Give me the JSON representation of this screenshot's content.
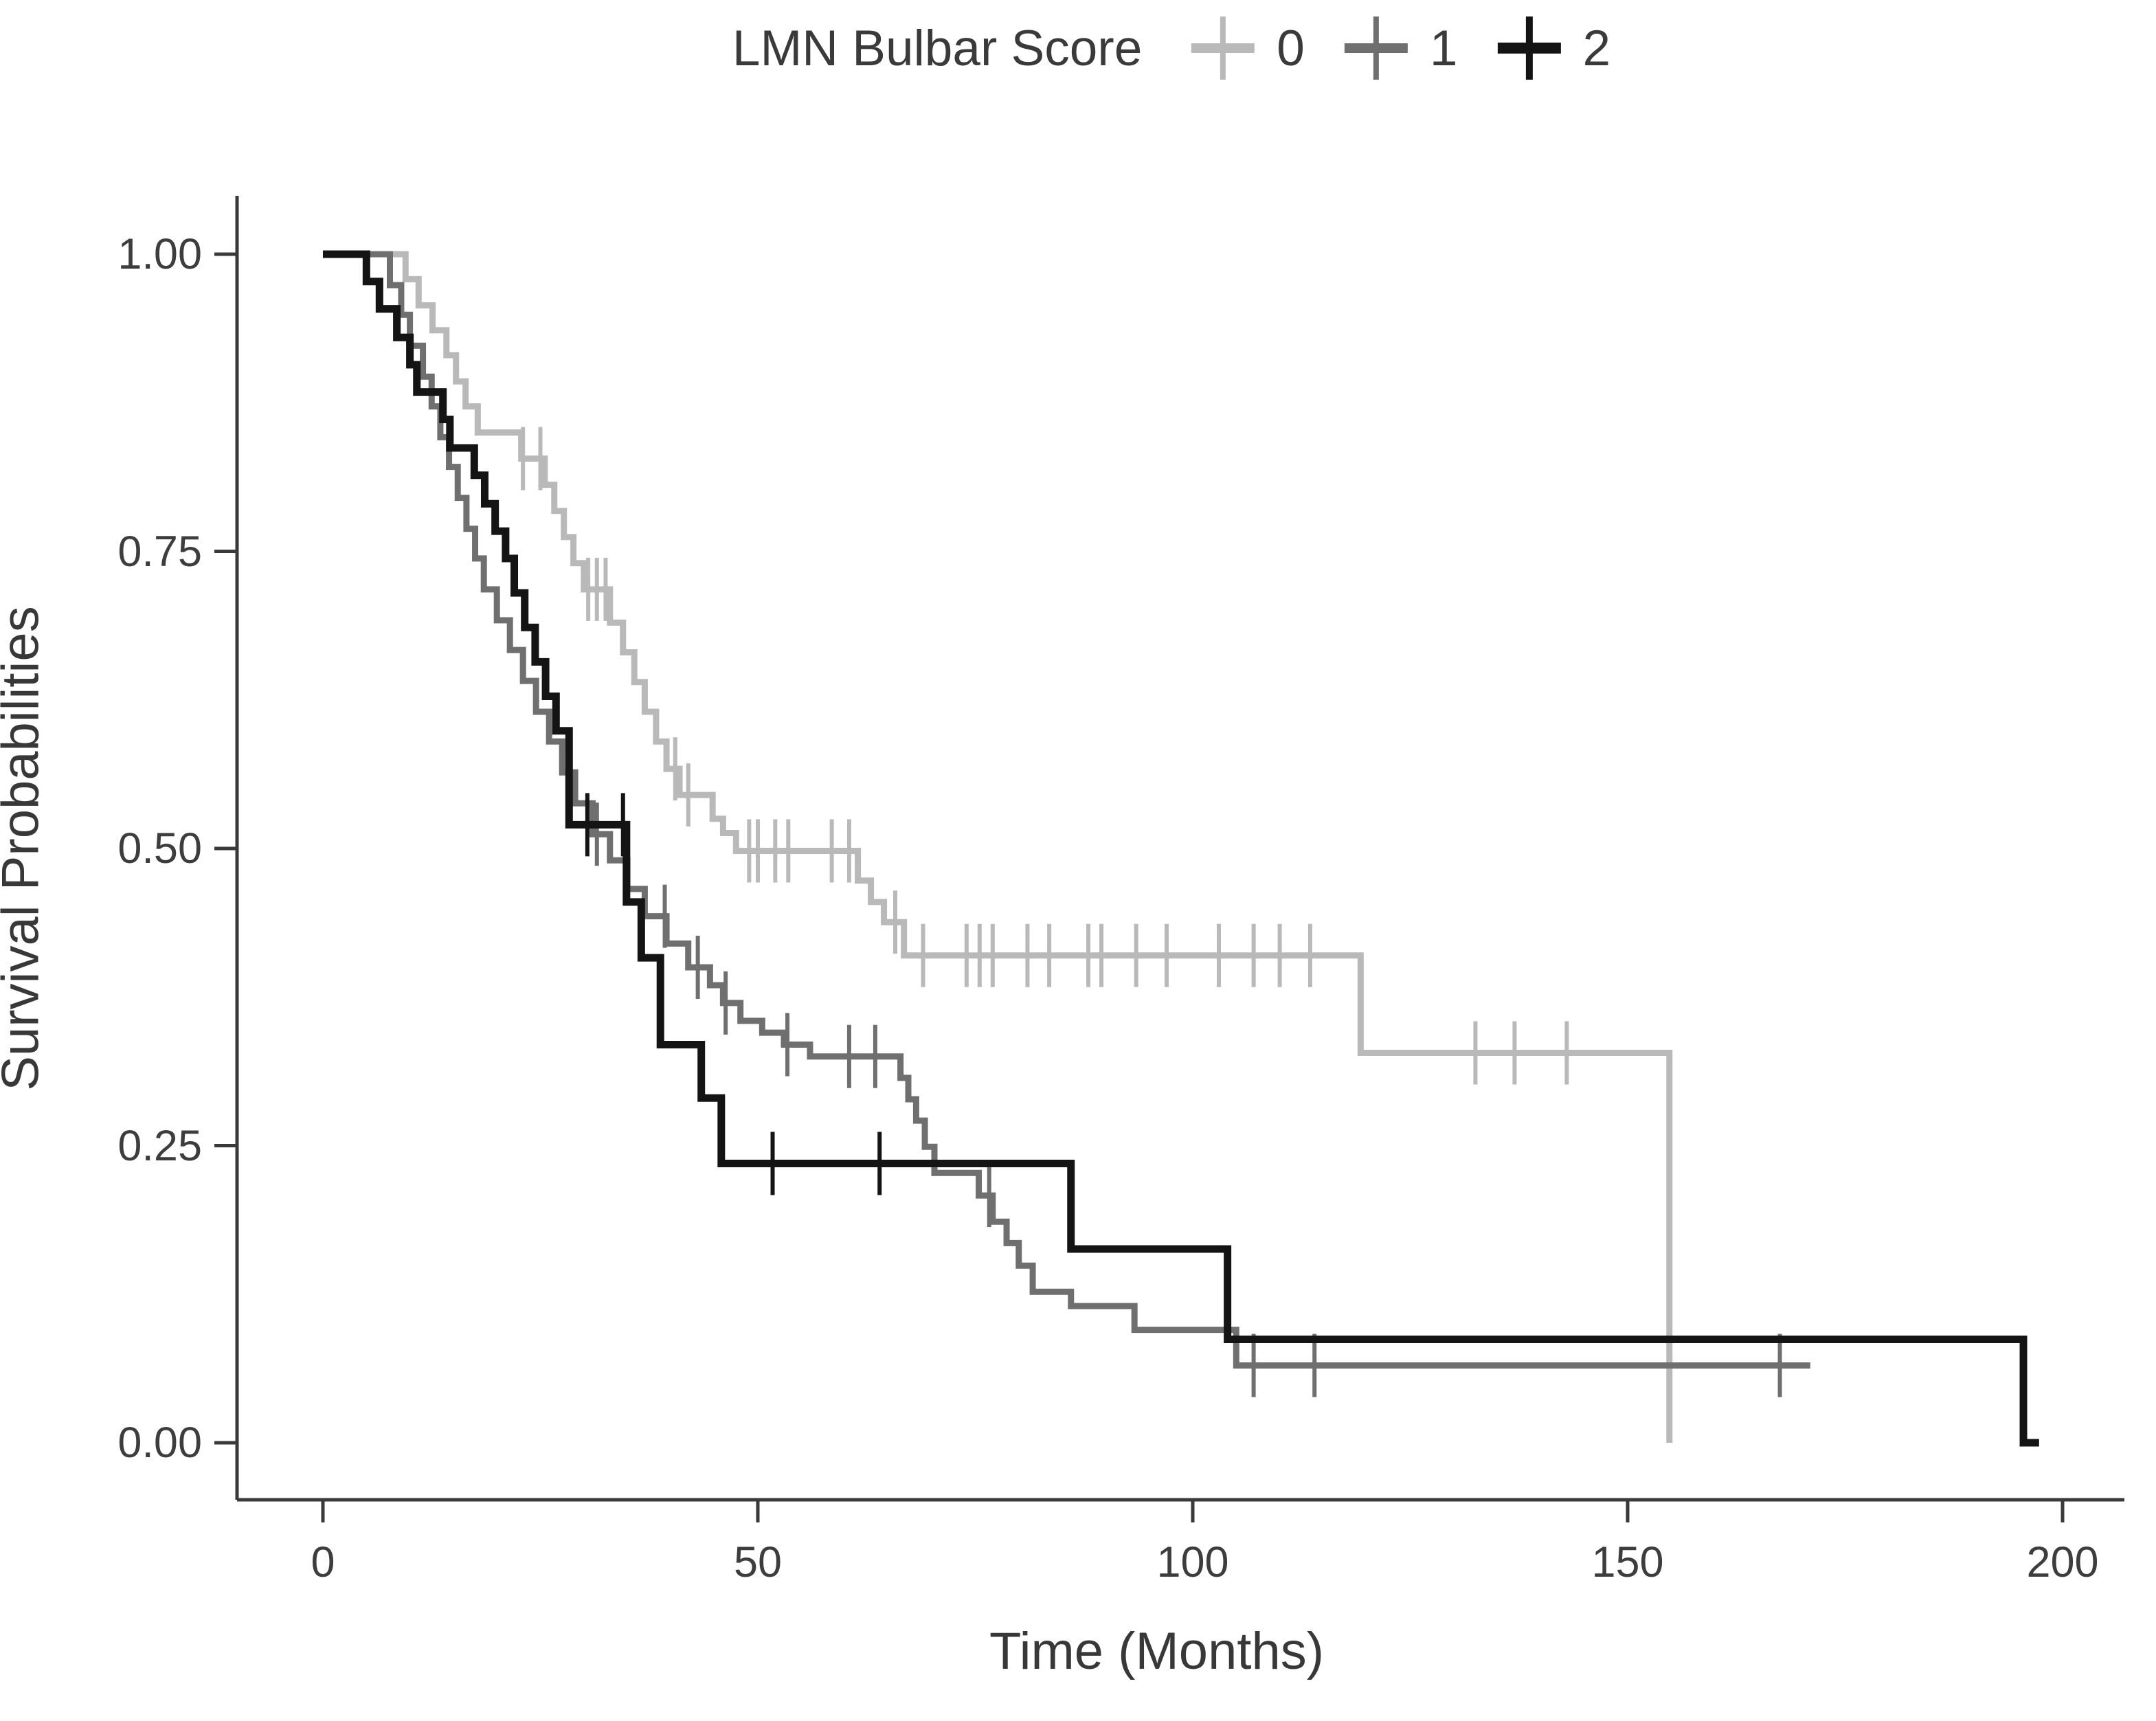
{
  "page": {
    "background": "#ffffff"
  },
  "legend": {
    "title": "LMN Bulbar Score",
    "items": [
      {
        "label": "0",
        "color": "#b9b9b9"
      },
      {
        "label": "1",
        "color": "#6f6f6f"
      },
      {
        "label": "2",
        "color": "#141414"
      }
    ]
  },
  "chart_data": {
    "type": "line",
    "subtype": "kaplan-meier-step-curves",
    "title": "LMN Bulbar Score",
    "xlabel": "Time (Months)",
    "ylabel": "Survival Probabilities",
    "xlim": [
      0,
      200
    ],
    "ylim": [
      0.0,
      1.0
    ],
    "xticks": [
      "0",
      "50",
      "100",
      "150",
      "200"
    ],
    "xtick_values": [
      0,
      50,
      100,
      150,
      200
    ],
    "yticks": [
      "0.00",
      "0.25",
      "0.50",
      "0.75",
      "1.00"
    ],
    "ytick_values": [
      0,
      0.25,
      0.5,
      0.75,
      1.0
    ],
    "grid": false,
    "legend_position": "top",
    "axis_color": "#3a3a3a",
    "text_color": "#3d3d3d",
    "series": [
      {
        "name": "0",
        "color": "#b9b9b9",
        "line_width": 9,
        "start_probability": 1.0,
        "steps": [
          [
            9.5,
            0.979
          ],
          [
            11,
            0.957
          ],
          [
            12.6,
            0.936
          ],
          [
            14.2,
            0.915
          ],
          [
            15.3,
            0.893
          ],
          [
            16.4,
            0.872
          ],
          [
            17.8,
            0.85
          ],
          [
            22.8,
            0.828
          ],
          [
            25.5,
            0.806
          ],
          [
            26.6,
            0.784
          ],
          [
            27.7,
            0.762
          ],
          [
            28.8,
            0.74
          ],
          [
            30,
            0.718
          ],
          [
            33,
            0.69
          ],
          [
            34.5,
            0.665
          ],
          [
            35.8,
            0.64
          ],
          [
            37,
            0.615
          ],
          [
            38.3,
            0.59
          ],
          [
            39.5,
            0.567
          ],
          [
            41,
            0.545
          ],
          [
            44.8,
            0.525
          ],
          [
            46,
            0.513
          ],
          [
            47.5,
            0.498
          ],
          [
            61.5,
            0.473
          ],
          [
            63,
            0.455
          ],
          [
            64.5,
            0.438
          ],
          [
            66.8,
            0.41
          ],
          [
            119.3,
            0.328
          ],
          [
            154.8,
            0.0
          ]
        ],
        "end_time": 154.8,
        "censor_times": [
          23,
          25,
          30.5,
          31.5,
          32.5,
          40.5,
          42,
          49,
          50,
          52,
          53.5,
          58.5,
          60.5,
          65.8,
          69,
          74,
          75.5,
          77,
          81,
          83.5,
          88,
          89.5,
          93.5,
          97,
          103,
          107,
          110,
          113.5,
          132.5,
          137,
          143
        ]
      },
      {
        "name": "1",
        "color": "#6f6f6f",
        "line_width": 9,
        "start_probability": 1.0,
        "steps": [
          [
            7.7,
            0.974
          ],
          [
            9,
            0.949
          ],
          [
            10,
            0.923
          ],
          [
            11.5,
            0.897
          ],
          [
            12.5,
            0.872
          ],
          [
            13.5,
            0.846
          ],
          [
            14.5,
            0.821
          ],
          [
            15.5,
            0.795
          ],
          [
            16.5,
            0.769
          ],
          [
            17.5,
            0.744
          ],
          [
            18.5,
            0.718
          ],
          [
            20,
            0.692
          ],
          [
            21.5,
            0.667
          ],
          [
            23,
            0.641
          ],
          [
            24.5,
            0.615
          ],
          [
            26,
            0.59
          ],
          [
            27.5,
            0.564
          ],
          [
            29,
            0.538
          ],
          [
            31,
            0.512
          ],
          [
            33,
            0.49
          ],
          [
            35,
            0.466
          ],
          [
            37,
            0.443
          ],
          [
            39.5,
            0.42
          ],
          [
            42,
            0.4
          ],
          [
            44.5,
            0.385
          ],
          [
            46,
            0.37
          ],
          [
            48,
            0.355
          ],
          [
            50.5,
            0.345
          ],
          [
            53,
            0.335
          ],
          [
            56,
            0.325
          ],
          [
            66.4,
            0.307
          ],
          [
            67.3,
            0.289
          ],
          [
            68.2,
            0.271
          ],
          [
            69.2,
            0.249
          ],
          [
            70.3,
            0.227
          ],
          [
            75.4,
            0.208
          ],
          [
            77,
            0.186
          ],
          [
            78.6,
            0.168
          ],
          [
            80,
            0.149
          ],
          [
            81.6,
            0.127
          ],
          [
            86,
            0.115
          ],
          [
            93.3,
            0.095
          ],
          [
            105,
            0.065
          ]
        ],
        "end_time": 171,
        "censor_times": [
          31.5,
          39.3,
          43.1,
          46.3,
          53.4,
          60.5,
          63.5,
          76.6,
          107,
          114,
          167.5
        ]
      },
      {
        "name": "2",
        "color": "#141414",
        "line_width": 11,
        "start_probability": 1.0,
        "steps": [
          [
            5,
            0.977
          ],
          [
            6.5,
            0.954
          ],
          [
            8.5,
            0.93
          ],
          [
            10,
            0.907
          ],
          [
            10.8,
            0.884
          ],
          [
            13.8,
            0.861
          ],
          [
            14.6,
            0.837
          ],
          [
            17.4,
            0.814
          ],
          [
            18.6,
            0.79
          ],
          [
            19.8,
            0.767
          ],
          [
            21,
            0.744
          ],
          [
            22,
            0.715
          ],
          [
            23.2,
            0.686
          ],
          [
            24.4,
            0.657
          ],
          [
            25.6,
            0.628
          ],
          [
            26.8,
            0.599
          ],
          [
            28.3,
            0.52
          ],
          [
            34.9,
            0.455
          ],
          [
            36.6,
            0.408
          ],
          [
            38.8,
            0.335
          ],
          [
            43.5,
            0.29
          ],
          [
            45.8,
            0.235
          ],
          [
            86,
            0.163
          ],
          [
            104,
            0.087
          ],
          [
            195.5,
            0.0
          ]
        ],
        "end_time": 197.3,
        "censor_times": [
          30.4,
          34.5,
          51.7,
          64
        ]
      }
    ]
  }
}
